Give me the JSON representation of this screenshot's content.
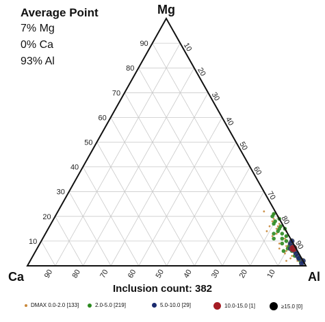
{
  "average_point": {
    "title": "Average Point",
    "lines": [
      "7% Mg",
      "0% Ca",
      "93% Al"
    ]
  },
  "inclusion_count_label": "Inclusion count: 382",
  "chart_data": {
    "type": "scatter",
    "subtype": "ternary",
    "vertices": {
      "top": "Mg",
      "left": "Ca",
      "right": "Al"
    },
    "ticks": [
      10,
      20,
      30,
      40,
      50,
      60,
      70,
      80,
      90
    ],
    "grid": true,
    "legend_position": "bottom",
    "average_point": {
      "Mg": 7,
      "Ca": 0,
      "Al": 93
    },
    "series": [
      {
        "name": "DMAX 0.0-2.0 [133]",
        "color": "#c8883a",
        "size": 1.4,
        "points": [
          [
            10,
            0
          ],
          [
            11,
            2
          ],
          [
            12,
            1
          ],
          [
            14,
            0
          ],
          [
            15,
            3
          ],
          [
            17,
            1
          ],
          [
            19,
            2
          ],
          [
            20,
            0
          ],
          [
            13,
            4
          ],
          [
            16,
            5
          ],
          [
            18,
            3
          ],
          [
            21,
            1
          ],
          [
            22,
            4
          ],
          [
            9,
            1
          ],
          [
            8,
            3
          ],
          [
            7,
            2
          ],
          [
            6,
            4
          ],
          [
            5,
            1
          ],
          [
            4,
            3
          ],
          [
            3,
            0
          ],
          [
            2,
            2
          ],
          [
            1,
            1
          ],
          [
            12,
            6
          ],
          [
            14,
            7
          ],
          [
            16,
            2
          ],
          [
            9,
            5
          ],
          [
            7,
            6
          ],
          [
            5,
            5
          ],
          [
            3,
            4
          ],
          [
            2,
            6
          ]
        ]
      },
      {
        "name": "2.0-5.0 [219]",
        "color": "#2b8a1f",
        "size": 2.8,
        "points": [
          [
            21,
            1
          ],
          [
            20,
            2
          ],
          [
            18,
            2
          ],
          [
            17,
            3
          ],
          [
            16,
            1
          ],
          [
            15,
            2
          ],
          [
            14,
            3
          ],
          [
            13,
            2
          ],
          [
            12,
            1
          ],
          [
            11,
            3
          ],
          [
            10,
            2
          ],
          [
            9,
            1
          ],
          [
            8,
            2
          ],
          [
            7,
            1
          ],
          [
            6,
            2
          ],
          [
            5,
            1
          ],
          [
            4,
            2
          ],
          [
            3,
            1
          ],
          [
            2,
            1
          ],
          [
            19,
            0
          ],
          [
            13,
            5
          ],
          [
            11,
            6
          ],
          [
            9,
            4
          ],
          [
            7,
            3
          ],
          [
            15,
            0
          ],
          [
            6,
            5
          ]
        ]
      },
      {
        "name": "5.0-10.0 [29]",
        "color": "#1a2a6e",
        "size": 3.6,
        "points": [
          [
            9,
            1
          ],
          [
            8,
            1
          ],
          [
            7,
            2
          ],
          [
            6,
            1
          ],
          [
            5,
            1
          ],
          [
            4,
            1
          ],
          [
            3,
            1
          ],
          [
            2,
            0
          ],
          [
            1,
            1
          ],
          [
            10,
            0
          ]
        ]
      },
      {
        "name": "10.0-15.0 [1]",
        "color": "#a51c24",
        "size": 5.5,
        "points": [
          [
            7,
            1
          ]
        ]
      },
      {
        "name": "≥15.0 [0]",
        "color": "#000000",
        "size": 6,
        "points": []
      }
    ]
  }
}
